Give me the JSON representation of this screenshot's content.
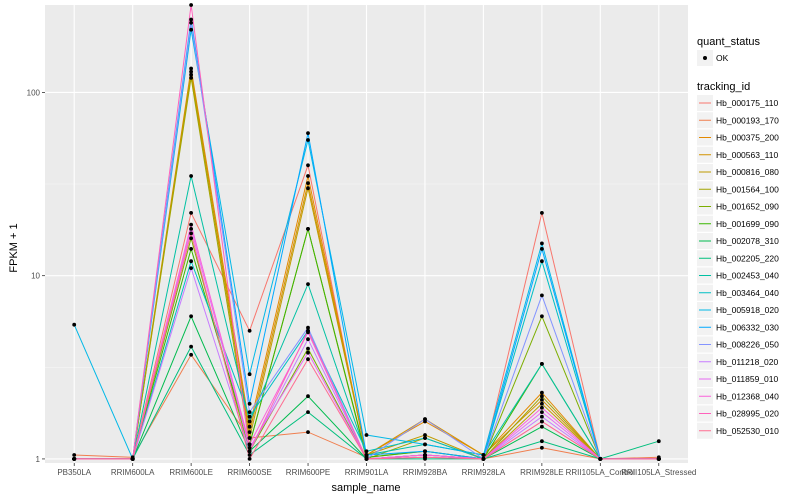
{
  "chart_data": {
    "type": "line",
    "xlabel": "sample_name",
    "ylabel": "FPKM + 1",
    "y_scale": "log10",
    "ylim": [
      0.95,
      300
    ],
    "y_ticks": [
      1,
      10,
      100
    ],
    "y_tick_labels": [
      "1",
      "10",
      "100"
    ],
    "grid": true,
    "legend_placement": "right",
    "categories": [
      "PB350LA",
      "RRIM600LA",
      "RRIM600LE",
      "RRIM600SE",
      "RRIM600PE",
      "RRIM901LA",
      "RRIM928BA",
      "RRIM928LA",
      "RRIM928LE",
      "RRII105LA_Control",
      "RRII105LA_Stressed"
    ],
    "quant_status": {
      "title": "quant_status",
      "entries": [
        "OK"
      ]
    },
    "legend_title": "tracking_id",
    "series": [
      {
        "name": "Hb_000175_110",
        "color": "#F8766D",
        "values": [
          1.0,
          1.0,
          22,
          5.0,
          40,
          1.0,
          1.05,
          1.0,
          22,
          1.0,
          1.0
        ]
      },
      {
        "name": "Hb_000193_170",
        "color": "#F07E4E",
        "values": [
          1.05,
          1.02,
          3.7,
          1.3,
          1.4,
          1.02,
          1.1,
          1.0,
          1.15,
          1.0,
          1.02
        ]
      },
      {
        "name": "Hb_000375_200",
        "color": "#E38900",
        "values": [
          1.0,
          1.0,
          135,
          1.5,
          35,
          1.05,
          1.6,
          1.05,
          2.3,
          1.0,
          1.0
        ]
      },
      {
        "name": "Hb_000563_110",
        "color": "#D39200",
        "values": [
          1.0,
          1.0,
          125,
          1.4,
          32,
          1.05,
          1.65,
          1.05,
          2.1,
          1.0,
          1.0
        ]
      },
      {
        "name": "Hb_000816_080",
        "color": "#BF9B00",
        "values": [
          1.0,
          1.0,
          130,
          1.3,
          30,
          1.05,
          1.35,
          1.0,
          2.0,
          1.0,
          1.0
        ]
      },
      {
        "name": "Hb_001564_100",
        "color": "#A3A500",
        "values": [
          1.0,
          1.0,
          120,
          1.2,
          18,
          1.0,
          1.3,
          1.0,
          2.2,
          1.0,
          1.0
        ]
      },
      {
        "name": "Hb_001652_090",
        "color": "#7CAE00",
        "values": [
          1.0,
          1.0,
          16,
          1.1,
          4.0,
          1.0,
          1.05,
          1.0,
          6.0,
          1.0,
          1.0
        ]
      },
      {
        "name": "Hb_001699_090",
        "color": "#39B600",
        "values": [
          1.0,
          1.0,
          14,
          1.2,
          18,
          1.02,
          1.1,
          1.0,
          3.3,
          1.0,
          1.0
        ]
      },
      {
        "name": "Hb_002078_310",
        "color": "#00BB4E",
        "values": [
          1.0,
          1.0,
          6.0,
          1.1,
          2.2,
          1.0,
          1.05,
          1.0,
          1.5,
          1.0,
          1.0
        ]
      },
      {
        "name": "Hb_002205_220",
        "color": "#00BF7D",
        "values": [
          1.0,
          1.0,
          4.1,
          1.05,
          1.8,
          1.0,
          1.0,
          1.0,
          1.25,
          1.0,
          1.25
        ]
      },
      {
        "name": "Hb_002453_040",
        "color": "#00C1A3",
        "values": [
          1.0,
          1.0,
          35,
          1.6,
          9.0,
          1.05,
          1.2,
          1.05,
          3.3,
          1.0,
          1.0
        ]
      },
      {
        "name": "Hb_003464_040",
        "color": "#00BFC4",
        "values": [
          1.0,
          1.0,
          12,
          1.7,
          5.0,
          1.1,
          1.3,
          1.0,
          12,
          1.0,
          1.0
        ]
      },
      {
        "name": "Hb_005918_020",
        "color": "#00B8E7",
        "values": [
          5.4,
          1.0,
          220,
          2.9,
          55,
          1.35,
          1.2,
          1.05,
          15,
          1.0,
          1.0
        ]
      },
      {
        "name": "Hb_006332_030",
        "color": "#00A9FF",
        "values": [
          1.0,
          1.0,
          250,
          2.0,
          60,
          1.05,
          1.1,
          1.0,
          14,
          1.0,
          1.0
        ]
      },
      {
        "name": "Hb_008226_050",
        "color": "#8494FF",
        "values": [
          1.0,
          1.0,
          240,
          1.8,
          5.2,
          1.0,
          1.65,
          1.0,
          7.8,
          1.0,
          1.0
        ]
      },
      {
        "name": "Hb_011218_020",
        "color": "#C77CFF",
        "values": [
          1.0,
          1.0,
          11,
          1.1,
          4.5,
          1.0,
          1.05,
          1.0,
          1.7,
          1.0,
          1.0
        ]
      },
      {
        "name": "Hb_011859_010",
        "color": "#E76BF3",
        "values": [
          1.0,
          1.0,
          18,
          1.15,
          3.8,
          1.0,
          1.05,
          1.0,
          1.8,
          1.0,
          1.0
        ]
      },
      {
        "name": "Hb_012368_040",
        "color": "#FA62DB",
        "values": [
          1.0,
          1.0,
          19,
          1.2,
          4.9,
          1.0,
          1.05,
          1.0,
          1.9,
          1.0,
          1.0
        ]
      },
      {
        "name": "Hb_028995_020",
        "color": "#FF62BC",
        "values": [
          1.0,
          1.0,
          300,
          1.1,
          5.0,
          1.0,
          1.02,
          1.0,
          1.6,
          1.0,
          1.0
        ]
      },
      {
        "name": "Hb_052530_010",
        "color": "#FF6C91",
        "values": [
          1.0,
          1.0,
          17,
          1.0,
          3.5,
          1.0,
          1.02,
          1.0,
          1.6,
          1.0,
          1.0
        ]
      }
    ]
  }
}
